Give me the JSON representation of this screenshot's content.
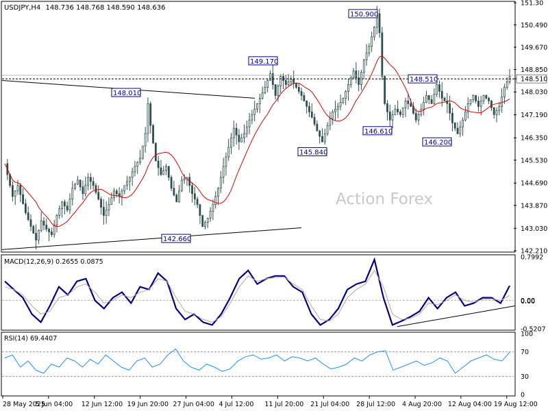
{
  "header": {
    "symbol": "USDJPY,H4",
    "ohlc": "148.736 148.768 148.590 148.636"
  },
  "watermark": "Action Forex",
  "colors": {
    "candles": "#2f4f4f",
    "ma": "#dd0000",
    "macd": "#000080",
    "signal": "#c0a0a0",
    "rsi": "#1e90ff",
    "current_label_bg": "#ffffff",
    "price_box_border": "#000080"
  },
  "chart_data": [
    {
      "type": "candlestick",
      "panel": "price",
      "title": "USDJPY,H4",
      "ylim": [
        142.21,
        151.3
      ],
      "y_ticks": [
        "151.30",
        "150.490",
        "149.670",
        "148.850",
        "148.510",
        "148.030",
        "147.190",
        "146.350",
        "145.530",
        "144.690",
        "143.870",
        "143.030",
        "142.210"
      ],
      "x_labels": [
        "28 May 2025",
        "5 Jun 04:00",
        "12 Jun 12:00",
        "19 Jun 20:00",
        "27 Jun 04:00",
        "4 Jul 12:00",
        "11 Jul 20:00",
        "21 Jul 04:00",
        "28 Jul 12:00",
        "4 Aug 20:00",
        "12 Aug 04:00",
        "19 Aug 12:00"
      ],
      "close_path": [
        [
          0,
          145.4
        ],
        [
          3,
          144.2
        ],
        [
          5,
          144.6
        ],
        [
          8,
          143.6
        ],
        [
          10,
          143.1
        ],
        [
          12,
          142.6
        ],
        [
          14,
          143.3
        ],
        [
          16,
          143.0
        ],
        [
          18,
          142.8
        ],
        [
          20,
          143.5
        ],
        [
          22,
          144.0
        ],
        [
          24,
          143.7
        ],
        [
          26,
          144.5
        ],
        [
          28,
          144.8
        ],
        [
          30,
          144.3
        ],
        [
          32,
          144.9
        ],
        [
          34,
          144.6
        ],
        [
          36,
          144.1
        ],
        [
          38,
          143.5
        ],
        [
          40,
          143.9
        ],
        [
          42,
          144.4
        ],
        [
          44,
          144.2
        ],
        [
          46,
          144.6
        ],
        [
          48,
          144.9
        ],
        [
          50,
          145.3
        ],
        [
          52,
          145.6
        ],
        [
          54,
          146.5
        ],
        [
          55,
          147.6
        ],
        [
          56,
          146.8
        ],
        [
          58,
          145.5
        ],
        [
          60,
          145.0
        ],
        [
          62,
          145.3
        ],
        [
          64,
          144.5
        ],
        [
          66,
          144.0
        ],
        [
          68,
          144.8
        ],
        [
          70,
          144.9
        ],
        [
          72,
          144.3
        ],
        [
          74,
          143.9
        ],
        [
          76,
          143.1
        ],
        [
          78,
          143.4
        ],
        [
          80,
          143.9
        ],
        [
          82,
          144.5
        ],
        [
          84,
          145.3
        ],
        [
          86,
          146.0
        ],
        [
          88,
          146.7
        ],
        [
          90,
          146.2
        ],
        [
          92,
          146.5
        ],
        [
          94,
          147.0
        ],
        [
          96,
          147.4
        ],
        [
          98,
          147.8
        ],
        [
          100,
          148.2
        ],
        [
          102,
          148.7
        ],
        [
          104,
          147.9
        ],
        [
          106,
          148.6
        ],
        [
          108,
          148.3
        ],
        [
          110,
          148.5
        ],
        [
          112,
          148.2
        ],
        [
          114,
          147.9
        ],
        [
          116,
          147.5
        ],
        [
          118,
          147.1
        ],
        [
          120,
          146.6
        ],
        [
          122,
          146.2
        ],
        [
          124,
          146.8
        ],
        [
          126,
          147.3
        ],
        [
          128,
          147.5
        ],
        [
          130,
          147.8
        ],
        [
          132,
          148.3
        ],
        [
          134,
          148.8
        ],
        [
          136,
          148.3
        ],
        [
          138,
          149.2
        ],
        [
          140,
          149.7
        ],
        [
          142,
          150.4
        ],
        [
          143,
          150.9
        ],
        [
          144,
          150.2
        ],
        [
          145,
          148.6
        ],
        [
          146,
          147.6
        ],
        [
          148,
          147.0
        ],
        [
          150,
          147.4
        ],
        [
          152,
          147.2
        ],
        [
          154,
          147.7
        ],
        [
          156,
          147.5
        ],
        [
          158,
          147.0
        ],
        [
          160,
          147.4
        ],
        [
          162,
          147.9
        ],
        [
          164,
          147.6
        ],
        [
          166,
          148.3
        ],
        [
          168,
          147.8
        ],
        [
          170,
          147.6
        ],
        [
          172,
          146.9
        ],
        [
          174,
          146.5
        ],
        [
          176,
          147.0
        ],
        [
          178,
          147.6
        ],
        [
          180,
          147.9
        ],
        [
          182,
          147.5
        ],
        [
          184,
          147.9
        ],
        [
          186,
          147.7
        ],
        [
          188,
          147.2
        ],
        [
          190,
          147.5
        ],
        [
          192,
          148.2
        ],
        [
          194,
          148.6
        ]
      ],
      "price_labels": [
        {
          "text": "150.900",
          "value": 150.9
        },
        {
          "text": "149.170",
          "value": 149.17
        },
        {
          "text": "148.010",
          "value": 148.01
        },
        {
          "text": "148.510",
          "value": 148.51
        },
        {
          "text": "146.610",
          "value": 146.61
        },
        {
          "text": "146.200",
          "value": 146.2
        },
        {
          "text": "145.840",
          "value": 145.84
        },
        {
          "text": "142.660",
          "value": 142.66
        }
      ],
      "horizontal_lines": [
        148.51,
        148.64
      ]
    },
    {
      "type": "line",
      "panel": "macd",
      "title": "MACD(12,26,9) 0.2655 0.0875",
      "ylim": [
        -0.5207,
        0.7992
      ],
      "y_ticks": [
        "0.7992",
        "0.00",
        "0.00",
        "-0.5207"
      ],
      "series": [
        {
          "name": "MACD",
          "values": [
            0.35,
            0.2,
            0.05,
            -0.25,
            -0.4,
            -0.1,
            0.25,
            0.1,
            0.35,
            0.4,
            0.0,
            -0.15,
            0.05,
            0.15,
            -0.05,
            0.25,
            0.2,
            0.5,
            0.35,
            -0.15,
            -0.35,
            -0.25,
            -0.4,
            -0.45,
            -0.25,
            0.05,
            0.4,
            0.55,
            0.3,
            0.4,
            0.45,
            0.45,
            0.25,
            0.15,
            -0.25,
            -0.45,
            -0.35,
            -0.15,
            0.2,
            0.3,
            0.35,
            0.75,
            0.05,
            -0.45,
            -0.38,
            -0.3,
            -0.2,
            0.05,
            -0.15,
            0.05,
            0.15,
            -0.1,
            -0.05,
            0.05,
            0.05,
            -0.05,
            0.27
          ]
        },
        {
          "name": "Signal",
          "values": [
            0.25,
            0.2,
            0.1,
            -0.1,
            -0.25,
            -0.2,
            0.05,
            0.1,
            0.25,
            0.3,
            0.15,
            -0.05,
            0.0,
            0.1,
            0.05,
            0.15,
            0.2,
            0.4,
            0.35,
            0.05,
            -0.2,
            -0.25,
            -0.35,
            -0.4,
            -0.3,
            -0.05,
            0.25,
            0.45,
            0.35,
            0.4,
            0.42,
            0.43,
            0.3,
            0.2,
            -0.1,
            -0.35,
            -0.38,
            -0.25,
            0.05,
            0.2,
            0.3,
            0.55,
            0.25,
            -0.25,
            -0.35,
            -0.33,
            -0.25,
            -0.05,
            -0.08,
            0.0,
            0.1,
            0.0,
            -0.03,
            0.02,
            0.03,
            0.0,
            0.09
          ]
        }
      ]
    },
    {
      "type": "line",
      "panel": "rsi",
      "title": "RSI(14) 69.4407",
      "ylim": [
        0,
        100
      ],
      "y_ticks": [
        "100",
        "70",
        "30",
        "0"
      ],
      "series": [
        {
          "name": "RSI",
          "values": [
            60,
            65,
            45,
            55,
            40,
            35,
            50,
            45,
            60,
            55,
            45,
            58,
            50,
            65,
            55,
            45,
            40,
            55,
            60,
            45,
            50,
            65,
            75,
            55,
            45,
            40,
            50,
            45,
            38,
            42,
            55,
            62,
            65,
            58,
            60,
            65,
            55,
            62,
            60,
            55,
            60,
            50,
            42,
            45,
            50,
            60,
            55,
            65,
            70,
            72,
            40,
            45,
            50,
            55,
            48,
            52,
            60,
            55,
            35,
            45,
            55,
            60,
            65,
            58,
            55,
            69
          ]
        }
      ]
    }
  ]
}
